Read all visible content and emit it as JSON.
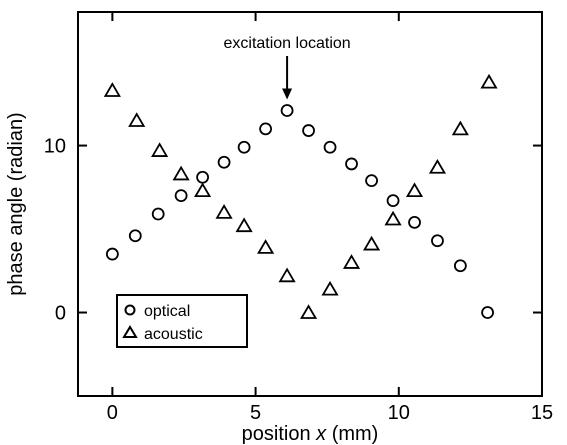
{
  "chart_data": {
    "type": "scatter",
    "xlabel": {
      "prefix": "position ",
      "var": "x",
      "suffix": " (mm)"
    },
    "ylabel": "phase angle (radian)",
    "xlim": [
      -1.2,
      15
    ],
    "ylim": [
      -5,
      18
    ],
    "xticks": [
      0,
      5,
      10,
      15
    ],
    "yticks": [
      0,
      10
    ],
    "grid": false,
    "legend_position": "bottom-left",
    "annotation": {
      "text": "excitation location",
      "x": 6.1,
      "y": 12.1
    },
    "series": [
      {
        "name": "optical",
        "marker": "circle",
        "x": [
          0,
          0.8,
          1.6,
          2.4,
          3.15,
          3.9,
          4.6,
          5.35,
          6.1,
          6.85,
          7.6,
          8.35,
          9.05,
          9.8,
          10.55,
          11.35,
          12.15,
          13.1
        ],
        "y": [
          3.5,
          4.6,
          5.9,
          7.0,
          8.1,
          9.0,
          9.9,
          11.0,
          12.1,
          10.9,
          9.9,
          8.9,
          7.9,
          6.7,
          5.4,
          4.3,
          2.8,
          0.0
        ]
      },
      {
        "name": "acoustic",
        "marker": "triangle",
        "x": [
          0,
          0.85,
          1.65,
          2.4,
          3.15,
          3.9,
          4.6,
          5.35,
          6.1,
          6.85,
          7.6,
          8.35,
          9.05,
          9.8,
          10.55,
          11.35,
          12.15,
          13.15
        ],
        "y": [
          13.3,
          11.5,
          9.7,
          8.3,
          7.3,
          6.0,
          5.2,
          3.9,
          2.2,
          0.0,
          1.4,
          3.0,
          4.1,
          5.6,
          7.3,
          8.7,
          11.0,
          13.8
        ]
      }
    ]
  }
}
